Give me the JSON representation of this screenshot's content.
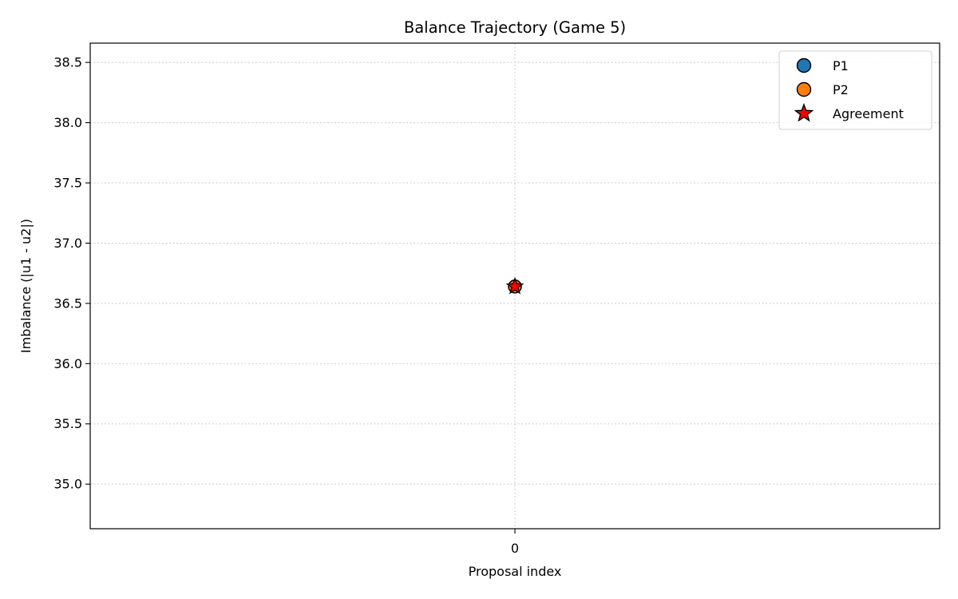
{
  "chart_data": {
    "type": "scatter",
    "title": "Balance Trajectory (Game 5)",
    "xlabel": "Proposal index",
    "ylabel": "Imbalance (|u1 - u2|)",
    "x_ticks": [
      0
    ],
    "x_tick_labels": [
      "0"
    ],
    "xlim": [
      -0.055,
      0.055
    ],
    "y_ticks": [
      35.0,
      35.5,
      36.0,
      36.5,
      37.0,
      37.5,
      38.0,
      38.5
    ],
    "y_tick_labels": [
      "35.0",
      "35.5",
      "36.0",
      "36.5",
      "37.0",
      "37.5",
      "38.0",
      "38.5"
    ],
    "ylim": [
      34.63,
      38.66
    ],
    "grid": true,
    "legend_position": "top-right",
    "series": [
      {
        "name": "P1",
        "marker": "circle",
        "color": "#1f77b4",
        "points": [
          {
            "x": 0,
            "y": 36.64
          }
        ]
      },
      {
        "name": "P2",
        "marker": "circle",
        "color": "#ff7f0e",
        "points": [
          {
            "x": 0,
            "y": 36.64
          }
        ]
      },
      {
        "name": "Agreement",
        "marker": "star",
        "color": "#ff0000",
        "points": [
          {
            "x": 0,
            "y": 36.64
          }
        ]
      }
    ]
  }
}
